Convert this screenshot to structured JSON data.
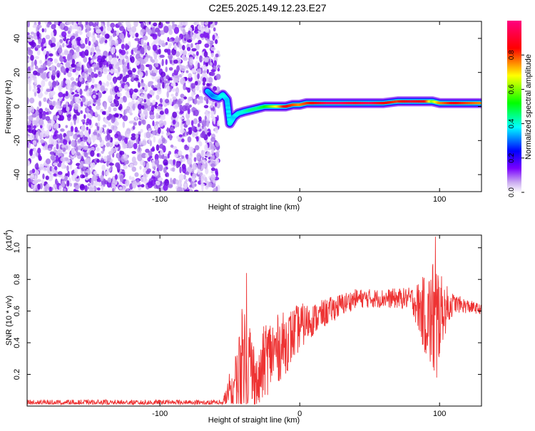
{
  "figure": {
    "title": "C2E5.2025.149.12.23.E27"
  },
  "chart_data": [
    {
      "type": "heatmap",
      "title": "C2E5.2025.149.12.23.E27",
      "xlabel": "Height of straight line (km)",
      "ylabel": "Frequency (Hz)",
      "xlim": [
        -195,
        130
      ],
      "ylim": [
        -50,
        50
      ],
      "x_ticks": [
        -100,
        0,
        100
      ],
      "y_ticks": [
        -40,
        -20,
        0,
        20,
        40
      ],
      "grid": false,
      "colorbar": {
        "label": "Normalized spectral amplitude",
        "range": [
          0,
          1
        ],
        "ticks": [
          0.0,
          0.2,
          0.4,
          0.6,
          0.8
        ],
        "colors": [
          "#ffffff",
          "#c8a8f0",
          "#7a00ff",
          "#0000ff",
          "#00ffff",
          "#00ff00",
          "#ffff00",
          "#ff0000",
          "#ff0080"
        ]
      },
      "noise_region_x": [
        -195,
        -62
      ],
      "ridge": [
        {
          "x": -66,
          "y": 9,
          "amp": 0.35
        },
        {
          "x": -62,
          "y": 6,
          "amp": 0.3
        },
        {
          "x": -58,
          "y": 5,
          "amp": 0.35
        },
        {
          "x": -55,
          "y": 7,
          "amp": 0.4
        },
        {
          "x": -52,
          "y": 4,
          "amp": 0.35
        },
        {
          "x": -50,
          "y": -10,
          "amp": 0.4
        },
        {
          "x": -47,
          "y": -6,
          "amp": 0.35
        },
        {
          "x": -44,
          "y": -4,
          "amp": 0.4
        },
        {
          "x": -40,
          "y": -3,
          "amp": 0.4
        },
        {
          "x": -35,
          "y": -2,
          "amp": 0.45
        },
        {
          "x": -30,
          "y": -1,
          "amp": 0.45
        },
        {
          "x": -25,
          "y": 0,
          "amp": 0.5
        },
        {
          "x": -20,
          "y": 0,
          "amp": 0.6
        },
        {
          "x": -15,
          "y": 0,
          "amp": 0.7
        },
        {
          "x": -10,
          "y": 0,
          "amp": 0.85
        },
        {
          "x": -5,
          "y": 1,
          "amp": 0.8
        },
        {
          "x": 0,
          "y": 1,
          "amp": 0.75
        },
        {
          "x": 5,
          "y": 2,
          "amp": 0.8
        },
        {
          "x": 10,
          "y": 2,
          "amp": 0.85
        },
        {
          "x": 20,
          "y": 2,
          "amp": 0.95
        },
        {
          "x": 30,
          "y": 2,
          "amp": 0.95
        },
        {
          "x": 40,
          "y": 2,
          "amp": 0.9
        },
        {
          "x": 50,
          "y": 2,
          "amp": 0.95
        },
        {
          "x": 60,
          "y": 2,
          "amp": 0.85
        },
        {
          "x": 70,
          "y": 3,
          "amp": 0.8
        },
        {
          "x": 80,
          "y": 3,
          "amp": 0.9
        },
        {
          "x": 90,
          "y": 3,
          "amp": 0.85
        },
        {
          "x": 95,
          "y": 3,
          "amp": 0.6
        },
        {
          "x": 100,
          "y": 2,
          "amp": 0.75
        },
        {
          "x": 110,
          "y": 2,
          "amp": 0.85
        },
        {
          "x": 120,
          "y": 2,
          "amp": 0.8
        },
        {
          "x": 130,
          "y": 2,
          "amp": 0.75
        }
      ]
    },
    {
      "type": "line",
      "xlabel": "Height of straight line (km)",
      "ylabel": "SNR (10 * v/v)",
      "y_multiplier_label": "(x10",
      "y_multiplier_exp": "4",
      "xlim": [
        -195,
        130
      ],
      "ylim": [
        0.0,
        1.08
      ],
      "x_ticks": [
        -100,
        0,
        100
      ],
      "y_ticks": [
        0.2,
        0.4,
        0.6,
        0.8,
        1.0
      ],
      "grid": false,
      "series": [
        {
          "color": "#ee3333",
          "envelope": [
            {
              "x": -195,
              "base": 0.02,
              "jitter": 0.02
            },
            {
              "x": -55,
              "base": 0.02,
              "jitter": 0.02
            },
            {
              "x": -45,
              "base": 0.15,
              "jitter": 0.25
            },
            {
              "x": -40,
              "base": 0.35,
              "jitter": 0.35
            },
            {
              "x": -35,
              "base": 0.25,
              "jitter": 0.3
            },
            {
              "x": -30,
              "base": 0.12,
              "jitter": 0.15
            },
            {
              "x": -25,
              "base": 0.3,
              "jitter": 0.25
            },
            {
              "x": -10,
              "base": 0.4,
              "jitter": 0.2
            },
            {
              "x": 0,
              "base": 0.5,
              "jitter": 0.15
            },
            {
              "x": 10,
              "base": 0.55,
              "jitter": 0.1
            },
            {
              "x": 25,
              "base": 0.62,
              "jitter": 0.08
            },
            {
              "x": 40,
              "base": 0.68,
              "jitter": 0.06
            },
            {
              "x": 60,
              "base": 0.68,
              "jitter": 0.06
            },
            {
              "x": 80,
              "base": 0.68,
              "jitter": 0.07
            },
            {
              "x": 92,
              "base": 0.55,
              "jitter": 0.3
            },
            {
              "x": 97,
              "base": 0.55,
              "jitter": 0.45
            },
            {
              "x": 102,
              "base": 0.6,
              "jitter": 0.2
            },
            {
              "x": 110,
              "base": 0.65,
              "jitter": 0.06
            },
            {
              "x": 130,
              "base": 0.61,
              "jitter": 0.03
            }
          ],
          "peaks": [
            {
              "x": -38,
              "y": 0.84
            },
            {
              "x": 97,
              "y": 1.07
            },
            {
              "x": 98,
              "y": 0.18
            },
            {
              "x": -34,
              "y": 0.05
            }
          ]
        }
      ]
    }
  ]
}
